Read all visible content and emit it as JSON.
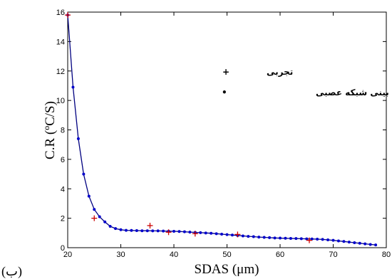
{
  "panel_label": "(ب)",
  "chart_data": {
    "type": "line",
    "xlabel": "SDAS (μm)",
    "ylabel": "C.R (ºC/S)",
    "xlim": [
      20,
      80
    ],
    "ylim": [
      0,
      16
    ],
    "x_ticks": [
      20,
      30,
      40,
      50,
      60,
      70,
      80
    ],
    "y_ticks": [
      0,
      2,
      4,
      6,
      8,
      10,
      12,
      14,
      16
    ],
    "grid": false,
    "legend": {
      "position": "top-right",
      "entries": [
        {
          "marker": "+",
          "label": "تجربی",
          "color": "#cc0000"
        },
        {
          "marker": "•",
          "label": "پیش بینی شبکه عصبی",
          "color": "#0000cc"
        }
      ]
    },
    "series": [
      {
        "label": "تجربی",
        "marker": "plus",
        "color": "#cc0000",
        "x": [
          20,
          25,
          35.5,
          39,
          44,
          52,
          65.5
        ],
        "y": [
          15.8,
          2.0,
          1.5,
          1.05,
          0.95,
          0.9,
          0.5
        ]
      },
      {
        "label": "پیش بینی شبکه عصبی",
        "marker": "dot",
        "color": "#0000cc",
        "line_color": "#000080",
        "x": [
          20,
          21,
          22,
          23,
          24,
          25,
          26,
          27,
          28,
          29,
          30,
          31,
          32,
          33,
          34,
          35,
          36,
          37,
          38,
          39,
          40,
          41,
          42,
          43,
          44,
          45,
          46,
          47,
          48,
          49,
          50,
          51,
          52,
          53,
          54,
          55,
          56,
          57,
          58,
          59,
          60,
          61,
          62,
          63,
          64,
          65,
          66,
          67,
          68,
          69,
          70,
          71,
          72,
          73,
          74,
          75,
          76,
          77,
          78
        ],
        "y": [
          15.8,
          10.9,
          7.4,
          5.0,
          3.5,
          2.6,
          2.1,
          1.75,
          1.45,
          1.3,
          1.22,
          1.18,
          1.17,
          1.16,
          1.15,
          1.15,
          1.14,
          1.14,
          1.13,
          1.12,
          1.11,
          1.1,
          1.08,
          1.06,
          1.04,
          1.02,
          1.0,
          0.98,
          0.95,
          0.92,
          0.89,
          0.86,
          0.83,
          0.8,
          0.77,
          0.75,
          0.72,
          0.7,
          0.68,
          0.66,
          0.65,
          0.64,
          0.63,
          0.62,
          0.61,
          0.6,
          0.59,
          0.58,
          0.56,
          0.53,
          0.5,
          0.46,
          0.42,
          0.38,
          0.34,
          0.3,
          0.26,
          0.22,
          0.19
        ]
      }
    ]
  }
}
